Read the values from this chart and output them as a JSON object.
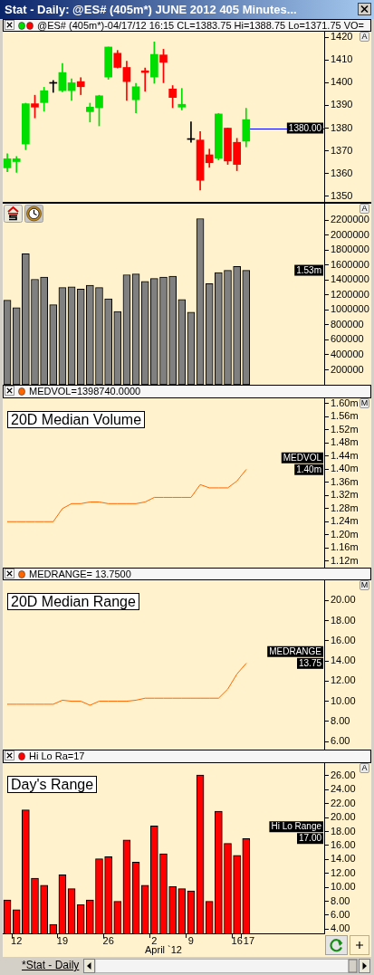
{
  "chart_data": [
    {
      "type": "candlestick",
      "title": "Stat - Daily: @ES# (405m*) JUNE 2012 405 Minutes...",
      "subtitle": "@ES# (405m*)-04/17/12 16:15 CL=1383.75 Hi=1388.75 Lo=1371.75 VO=",
      "categories": [
        null,
        "12",
        null,
        null,
        null,
        null,
        "19",
        null,
        null,
        null,
        null,
        "26",
        null,
        null,
        null,
        null,
        "2",
        null,
        null,
        null,
        "9",
        null,
        null,
        null,
        null,
        "16",
        "17",
        null,
        null,
        null,
        null,
        null,
        null,
        null,
        null
      ],
      "ohlc": [
        [
          1362.5,
          1368.75,
          1360.75,
          1366.5
        ],
        [
          1365.25,
          1367.5,
          1360.5,
          1366.5
        ],
        [
          1373,
          1391,
          1370.5,
          1390.75
        ],
        [
          1390.75,
          1394.5,
          1384.5,
          1389.25
        ],
        [
          1391.25,
          1398,
          1387.5,
          1396.5
        ],
        [
          1399.75,
          1401,
          1395.75,
          1399.75
        ],
        [
          1396.5,
          1408.5,
          1396,
          1404.5
        ],
        [
          1396.5,
          1401.75,
          1392.25,
          1400
        ],
        [
          1400.5,
          1402.25,
          1394.75,
          1398.25
        ],
        [
          1387.25,
          1391,
          1382.75,
          1389.25
        ],
        [
          1389,
          1394.5,
          1381,
          1394.25
        ],
        [
          1402.5,
          1415.75,
          1401.5,
          1415.75
        ],
        [
          1413,
          1414.25,
          1406.5,
          1406.75
        ],
        [
          1406.75,
          1409.5,
          1392.25,
          1400.5
        ],
        [
          1392.5,
          1399.75,
          1386.75,
          1398.25
        ],
        [
          1405.25,
          1406.5,
          1396.25,
          1404.5
        ],
        [
          1402.5,
          1418,
          1399.75,
          1412.5
        ],
        [
          1412.25,
          1414.75,
          1400,
          1409
        ],
        [
          1397.25,
          1398.75,
          1389,
          1393.5
        ],
        [
          1389.25,
          1397.5,
          1388,
          1390.5
        ],
        [
          1375,
          1382.75,
          1373.75,
          1375
        ],
        [
          1374.75,
          1378.5,
          1352.75,
          1357
        ],
        [
          1368.25,
          1370.75,
          1362.75,
          1364.75
        ],
        [
          1366.75,
          1386.5,
          1366,
          1386.25
        ],
        [
          1380,
          1380,
          1364,
          1365.5
        ],
        [
          1373.75,
          1375.5,
          1361.25,
          1364
        ],
        [
          1374.25,
          1388.75,
          1371.75,
          1383.75
        ],
        null,
        null,
        null,
        null,
        null,
        null,
        null,
        null
      ],
      "colors": [
        "#00dd00",
        "#00dd00",
        "#00dd00",
        "#ff0000",
        "#00dd00",
        "#000000",
        "#00dd00",
        "#00dd00",
        "#ff0000",
        "#00dd00",
        "#00dd00",
        "#00dd00",
        "#ff0000",
        "#ff0000",
        "#00dd00",
        "#ff0000",
        "#00dd00",
        "#ff0000",
        "#ff0000",
        "#00dd00",
        "#000000",
        "#ff0000",
        "#ff0000",
        "#00dd00",
        "#ff0000",
        "#ff0000",
        "#00dd00",
        null,
        null,
        null,
        null,
        null,
        null,
        null,
        null
      ],
      "ylim": [
        1347.5,
        1422.5
      ],
      "yticks": [
        1350,
        1360,
        1370,
        1380,
        1390,
        1400,
        1410,
        1420
      ],
      "tick_labels": "y",
      "ref_lines": [
        {
          "axis": "y",
          "value": 1380,
          "label": "1380.00",
          "color": "#0000ff"
        }
      ],
      "annotations": [
        "A"
      ]
    },
    {
      "type": "bar",
      "categories": [
        null,
        "12",
        null,
        null,
        null,
        null,
        "19",
        null,
        null,
        null,
        null,
        "26",
        null,
        null,
        null,
        null,
        "2",
        null,
        null,
        null,
        "9",
        null,
        null,
        null,
        null,
        "16",
        "17",
        null,
        null,
        null,
        null,
        null,
        null,
        null,
        null
      ],
      "values": [
        1130000,
        1030000,
        1750000,
        1410000,
        1440000,
        1070000,
        1300000,
        1310000,
        1280000,
        1330000,
        1300000,
        1150000,
        980000,
        1470000,
        1480000,
        1380000,
        1420000,
        1440000,
        1450000,
        1140000,
        970000,
        2220000,
        1350000,
        1500000,
        1530000,
        1580000,
        1530000,
        null,
        null,
        null,
        null,
        null,
        null,
        null,
        null
      ],
      "color": "#808080",
      "ylim": [
        0,
        2420000
      ],
      "yticks": [
        200000,
        400000,
        600000,
        800000,
        1000000,
        1200000,
        1400000,
        1600000,
        1800000,
        2000000,
        2200000
      ],
      "tick_labels": "y",
      "annotations": [
        "A",
        {
          "text": "1.53m",
          "y": 1530000
        }
      ]
    },
    {
      "type": "line",
      "title": "20D Median Volume",
      "subtitle": "MEDVOL=1398740.0000",
      "categories": [
        null,
        "12",
        null,
        null,
        null,
        null,
        "19",
        null,
        null,
        null,
        null,
        "26",
        null,
        null,
        null,
        null,
        "2",
        null,
        null,
        null,
        "9",
        null,
        null,
        null,
        null,
        "16",
        "17",
        null,
        null,
        null,
        null,
        null,
        null,
        null,
        null
      ],
      "series": [
        {
          "name": "MEDVOL",
          "color": "#ff6600",
          "values": [
            1240000,
            1240000,
            1240000,
            1240000,
            1240000,
            1240000,
            1280000,
            1295000,
            1295000,
            1300000,
            1300000,
            1295000,
            1295000,
            1295000,
            1295000,
            1300000,
            1314000,
            1314000,
            1314000,
            1314000,
            1314000,
            1353000,
            1343000,
            1343000,
            1343000,
            1364000,
            1398740,
            null,
            null,
            null,
            null,
            null,
            null,
            null,
            null
          ]
        }
      ],
      "ylim": [
        1100000,
        1616000
      ],
      "yticks": [
        {
          "value": 1120000,
          "label": "1.12m"
        },
        {
          "value": 1160000,
          "label": "1.16m"
        },
        {
          "value": 1200000,
          "label": "1.20m"
        },
        {
          "value": 1240000,
          "label": "1.24m"
        },
        {
          "value": 1280000,
          "label": "1.28m"
        },
        {
          "value": 1320000,
          "label": "1.32m"
        },
        {
          "value": 1360000,
          "label": "1.36m"
        },
        {
          "value": 1400000,
          "label": "1.40m"
        },
        {
          "value": 1440000,
          "label": "1.44m"
        },
        {
          "value": 1480000,
          "label": "1.48m"
        },
        {
          "value": 1520000,
          "label": "1.52m"
        },
        {
          "value": 1560000,
          "label": "1.56m"
        },
        {
          "value": 1600000,
          "label": "1.60m"
        }
      ],
      "tick_labels": "y",
      "annotations": [
        "M",
        {
          "text": "1.40m",
          "y": 1398740
        }
      ]
    },
    {
      "type": "line",
      "title": "20D Median Range",
      "subtitle": "MEDRANGE= 13.7500",
      "categories": [
        null,
        "12",
        null,
        null,
        null,
        null,
        "19",
        null,
        null,
        null,
        null,
        "26",
        null,
        null,
        null,
        null,
        "2",
        null,
        null,
        null,
        "9",
        null,
        null,
        null,
        null,
        "16",
        "17",
        null,
        null,
        null,
        null,
        null,
        null,
        null,
        null
      ],
      "series": [
        {
          "name": "MEDRANGE",
          "color": "#ff6600",
          "values": [
            9.7,
            9.7,
            9.7,
            9.7,
            9.7,
            9.7,
            10.1,
            10.0,
            10.0,
            9.6,
            10.0,
            10.0,
            10.0,
            10.0,
            10.1,
            10.3,
            10.3,
            10.3,
            10.3,
            10.3,
            10.3,
            10.3,
            10.3,
            10.3,
            11.2,
            12.7,
            13.75,
            null,
            null,
            null,
            null,
            null,
            null,
            null,
            null
          ]
        }
      ],
      "ylim": [
        5.2,
        22
      ],
      "yticks": [
        {
          "value": 6,
          "label": "6.00"
        },
        {
          "value": 8,
          "label": "8.00"
        },
        {
          "value": 10,
          "label": "10.00"
        },
        {
          "value": 12,
          "label": "12.00"
        },
        {
          "value": 14,
          "label": "14.00"
        },
        {
          "value": 16,
          "label": "16.00"
        },
        {
          "value": 18,
          "label": "18.00"
        },
        {
          "value": 20,
          "label": "20.00"
        }
      ],
      "tick_labels": "y",
      "annotations": [
        "M",
        {
          "text": "13.75",
          "y": 13.75
        }
      ]
    },
    {
      "type": "bar",
      "title": "Day's Range",
      "subtitle": "Hi Lo Ra=17",
      "categories": [
        null,
        "12",
        null,
        null,
        null,
        null,
        "19",
        null,
        null,
        null,
        null,
        "26",
        null,
        null,
        null,
        null,
        "2",
        null,
        null,
        null,
        "9",
        null,
        null,
        null,
        null,
        "16",
        "17",
        null,
        null,
        null,
        null,
        null,
        null,
        null,
        null
      ],
      "series": [
        {
          "name": "Hi Lo Range",
          "color": "#ff0000",
          "values": [
            8.2,
            6.8,
            21.1,
            11.3,
            10.3,
            4.7,
            11.8,
            9.8,
            7.5,
            8.2,
            14.1,
            14.4,
            8.0,
            16.8,
            13.6,
            10.3,
            18.8,
            14.8,
            10.1,
            9.8,
            9.5,
            26.1,
            8.0,
            20.9,
            16.3,
            14.6,
            17,
            null,
            null,
            null,
            null,
            null,
            null,
            null,
            null
          ]
        }
      ],
      "xlabel": "April `12",
      "ylim": [
        3.4,
        27.8
      ],
      "yticks": [
        {
          "value": 4,
          "label": "4.00"
        },
        {
          "value": 6,
          "label": "6.00"
        },
        {
          "value": 8,
          "label": "8.00"
        },
        {
          "value": 10,
          "label": "10.00"
        },
        {
          "value": 12,
          "label": "12.00"
        },
        {
          "value": 14,
          "label": "14.00"
        },
        {
          "value": 16,
          "label": "16.00"
        },
        {
          "value": 18,
          "label": "18.00"
        },
        {
          "value": 20,
          "label": "20.00"
        },
        {
          "value": 22,
          "label": "22.00"
        },
        {
          "value": 24,
          "label": "24.00"
        },
        {
          "value": 26,
          "label": "26.00"
        }
      ],
      "annotations": [
        "A",
        {
          "text": "17.00",
          "y": 17
        },
        "*Stat - Daily"
      ]
    }
  ]
}
